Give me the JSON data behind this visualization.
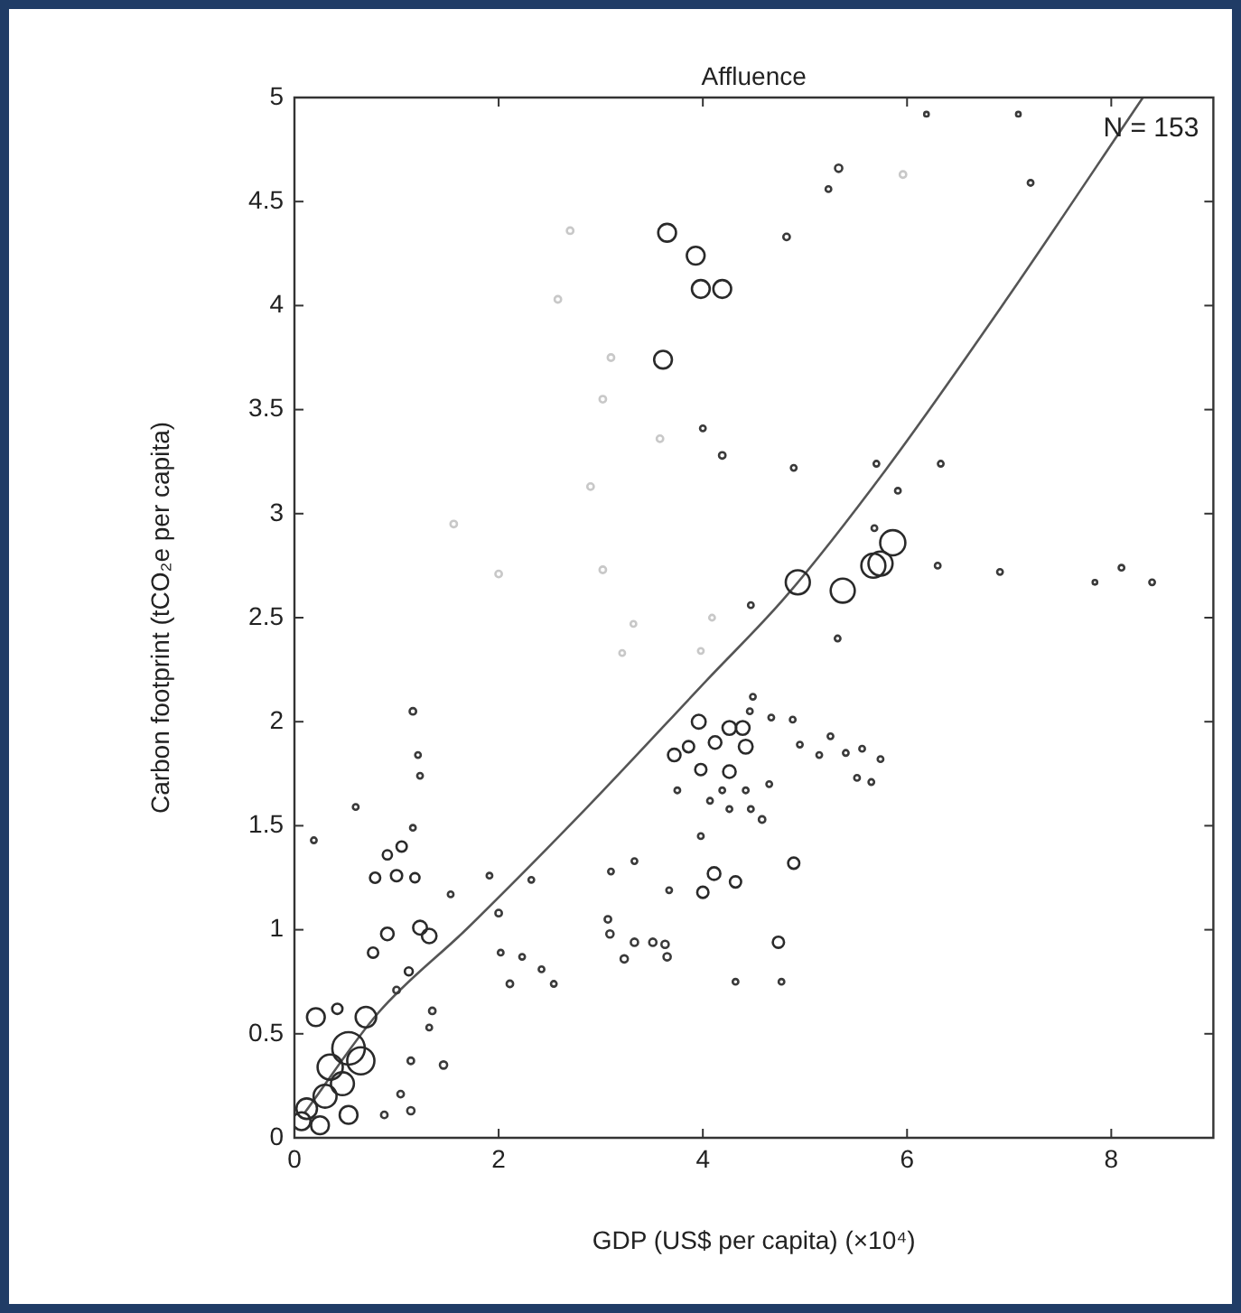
{
  "chart_data": {
    "type": "bubble",
    "title": "Affluence",
    "xlabel": "GDP (US$ per capita) (×10⁴)",
    "ylabel": "Carbon footprint (tCO₂e per capita)",
    "annotations": [
      "N = 153"
    ],
    "xlim": [
      0,
      9
    ],
    "xticks": [
      0,
      2,
      4,
      6,
      8
    ],
    "ylim": [
      0,
      5
    ],
    "yticks": [
      0,
      0.5,
      1,
      1.5,
      2,
      2.5,
      3,
      3.5,
      4,
      4.5,
      5
    ],
    "grid": false,
    "legend": false,
    "series": [
      {
        "color": "#2a2a2a",
        "x": [
          3.65,
          3.93,
          3.98,
          4.19,
          3.61,
          4.93,
          5.37,
          5.67,
          5.74,
          5.86,
          3.96,
          4.26,
          4.39,
          4.42,
          3.72,
          3.86,
          4.12,
          3.98,
          4.26,
          4.11,
          4.32,
          4.0,
          4.89,
          4.74,
          0.53,
          0.65,
          0.35,
          0.3,
          0.12,
          0.07,
          0.47,
          0.21,
          0.7,
          0.25,
          0.53,
          0.79,
          1.0,
          0.91,
          1.05,
          1.18,
          0.91,
          1.23,
          1.32,
          0.77,
          1.12,
          0.42
        ],
        "values": [
          4.35,
          4.24,
          4.08,
          4.08,
          3.74,
          2.67,
          2.63,
          2.75,
          2.76,
          2.86,
          2.0,
          1.97,
          1.97,
          1.88,
          1.84,
          1.88,
          1.9,
          1.77,
          1.76,
          1.27,
          1.23,
          1.18,
          1.32,
          0.94,
          0.43,
          0.37,
          0.34,
          0.2,
          0.14,
          0.08,
          0.26,
          0.58,
          0.58,
          0.06,
          0.11,
          1.25,
          1.26,
          1.36,
          1.4,
          1.25,
          0.98,
          1.01,
          0.97,
          0.89,
          0.8,
          0.62
        ],
        "sizes": [
          0.3,
          0.3,
          0.3,
          0.3,
          0.3,
          0.55,
          0.55,
          0.55,
          0.55,
          0.6,
          0.18,
          0.18,
          0.18,
          0.18,
          0.15,
          0.12,
          0.15,
          0.12,
          0.15,
          0.15,
          0.12,
          0.12,
          0.12,
          0.12,
          1,
          0.7,
          0.6,
          0.5,
          0.4,
          0.3,
          0.5,
          0.3,
          0.4,
          0.3,
          0.3,
          0.1,
          0.12,
          0.08,
          0.1,
          0.08,
          0.15,
          0.18,
          0.2,
          0.1,
          0.06,
          0.1
        ]
      },
      {
        "color": "#3a3a3a",
        "x": [
          5.33,
          5.23,
          4.82,
          4.19,
          4.0,
          4.89,
          5.7,
          5.91,
          6.33,
          6.3,
          6.91,
          8.1,
          8.4,
          6.19,
          7.09,
          7.21,
          5.68,
          4.47,
          7.84,
          3.75,
          4.19,
          4.42,
          4.07,
          4.26,
          4.47,
          4.58,
          4.49,
          4.46,
          4.67,
          4.88,
          4.95,
          5.14,
          5.25,
          5.4,
          5.56,
          5.74,
          5.51,
          5.65,
          4.65,
          5.32,
          3.07,
          3.09,
          3.23,
          3.33,
          3.51,
          3.65,
          3.63,
          2.0,
          1.91,
          2.11,
          2.23,
          2.42,
          2.54,
          2.02,
          3.1,
          3.33,
          3.67,
          4.77,
          4.32,
          3.98,
          1.53,
          2.32,
          1.16,
          1.21,
          1.23,
          1.16,
          0.6,
          0.19,
          1.0,
          1.35,
          1.32,
          1.14,
          1.46,
          1.04,
          1.14,
          0.88
        ],
        "values": [
          4.66,
          4.56,
          4.33,
          3.28,
          3.41,
          3.22,
          3.24,
          3.11,
          3.24,
          2.75,
          2.72,
          2.74,
          2.67,
          4.92,
          4.92,
          4.59,
          2.93,
          2.56,
          2.67,
          1.67,
          1.67,
          1.67,
          1.62,
          1.58,
          1.58,
          1.53,
          2.12,
          2.05,
          2.02,
          2.01,
          1.89,
          1.84,
          1.93,
          1.85,
          1.87,
          1.82,
          1.73,
          1.71,
          1.7,
          2.4,
          1.05,
          0.98,
          0.86,
          0.94,
          0.94,
          0.87,
          0.93,
          1.08,
          1.26,
          0.74,
          0.87,
          0.81,
          0.74,
          0.89,
          1.28,
          1.33,
          1.19,
          0.75,
          0.75,
          1.45,
          1.17,
          1.24,
          2.05,
          1.84,
          1.74,
          1.49,
          1.59,
          1.43,
          0.71,
          0.61,
          0.53,
          0.37,
          0.35,
          0.21,
          0.13,
          0.11
        ],
        "sizes": [
          0.05,
          0.03,
          0.04,
          0.04,
          0.03,
          0.03,
          0.03,
          0.03,
          0.03,
          0.03,
          0.03,
          0.03,
          0.03,
          0.02,
          0.02,
          0.03,
          0.03,
          0.03,
          0.02,
          0.03,
          0.03,
          0.03,
          0.03,
          0.03,
          0.03,
          0.04,
          0.03,
          0.03,
          0.03,
          0.03,
          0.03,
          0.03,
          0.03,
          0.03,
          0.03,
          0.03,
          0.03,
          0.03,
          0.03,
          0.03,
          0.04,
          0.05,
          0.05,
          0.05,
          0.05,
          0.05,
          0.05,
          0.04,
          0.03,
          0.04,
          0.03,
          0.03,
          0.03,
          0.03,
          0.03,
          0.03,
          0.03,
          0.03,
          0.03,
          0.03,
          0.03,
          0.03,
          0.04,
          0.03,
          0.03,
          0.03,
          0.03,
          0.03,
          0.04,
          0.04,
          0.03,
          0.04,
          0.05,
          0.04,
          0.05,
          0.04
        ]
      },
      {
        "color": "#c8c8c8",
        "x": [
          2.7,
          2.58,
          3.1,
          3.02,
          3.58,
          2.9,
          1.56,
          3.02,
          2.0,
          5.96,
          3.21,
          3.32,
          4.09,
          3.98
        ],
        "values": [
          4.36,
          4.03,
          3.75,
          3.55,
          3.36,
          3.13,
          2.95,
          2.73,
          2.71,
          4.63,
          2.33,
          2.47,
          2.5,
          2.34
        ],
        "sizes": [
          0.04,
          0.04,
          0.04,
          0.04,
          0.04,
          0.04,
          0.04,
          0.04,
          0.04,
          0.04,
          0.03,
          0.03,
          0.03,
          0.03
        ]
      },
      {
        "type": "line",
        "color": "#555555",
        "marker": "none",
        "x": [
          0.1,
          0.82,
          1.7,
          2.87,
          4.04,
          4.81,
          5.79,
          6.96,
          8.31
        ],
        "values": [
          0.12,
          0.6,
          1.01,
          1.59,
          2.2,
          2.6,
          3.21,
          4.02,
          5.0
        ]
      }
    ]
  }
}
